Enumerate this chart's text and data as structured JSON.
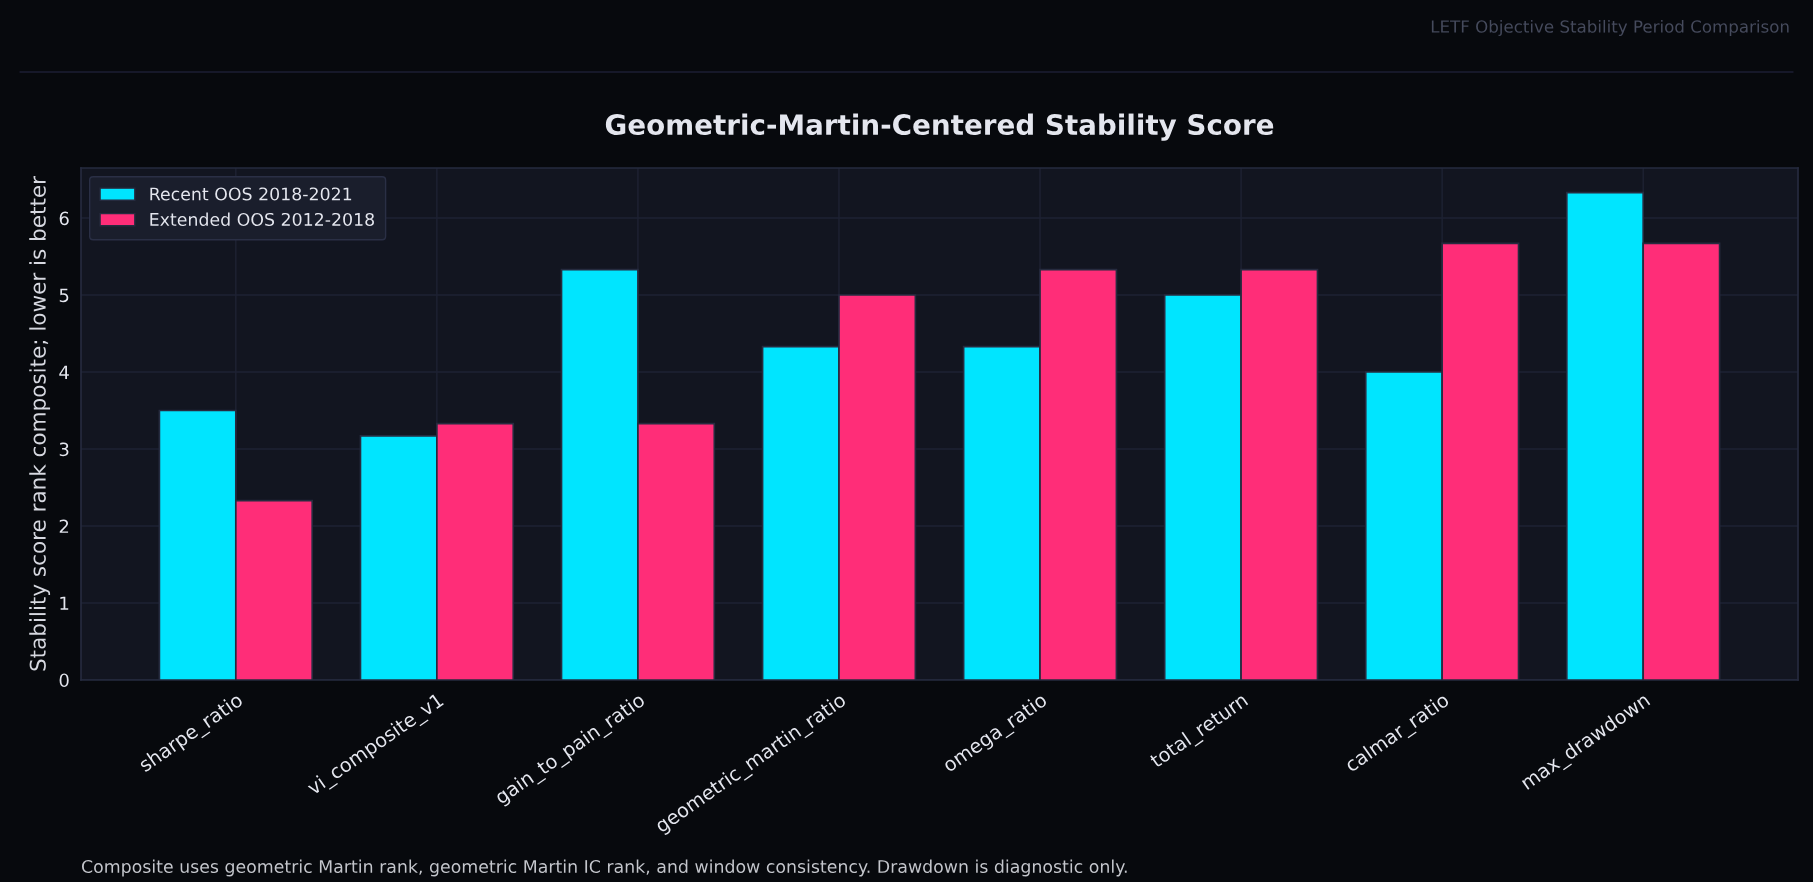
{
  "chart_data": {
    "type": "bar",
    "title": "Geometric-Martin-Centered Stability Score",
    "ylabel": "Stability score rank composite; lower is better",
    "categories": [
      "sharpe_ratio",
      "vi_composite_v1",
      "gain_to_pain_ratio",
      "geometric_martin_ratio",
      "omega_ratio",
      "total_return",
      "calmar_ratio",
      "max_drawdown"
    ],
    "series": [
      {
        "name": "Recent OOS 2018-2021",
        "color": "#00e5ff",
        "values": [
          3.5,
          3.17,
          5.33,
          4.33,
          4.33,
          5.0,
          4.0,
          6.33
        ]
      },
      {
        "name": "Extended OOS 2012-2018",
        "color": "#ff2d78",
        "values": [
          2.33,
          3.33,
          3.33,
          5.0,
          5.33,
          5.33,
          5.67,
          5.67
        ]
      }
    ],
    "ylim": [
      0,
      6.65
    ],
    "yticks": [
      0,
      1,
      2,
      3,
      4,
      5,
      6
    ],
    "grid": true,
    "legend": "top left",
    "annotations": [
      "LETF Objective Stability Period Comparison",
      "Composite uses geometric Martin rank, geometric Martin IC rank, and window consistency. Drawdown is diagnostic only."
    ]
  }
}
